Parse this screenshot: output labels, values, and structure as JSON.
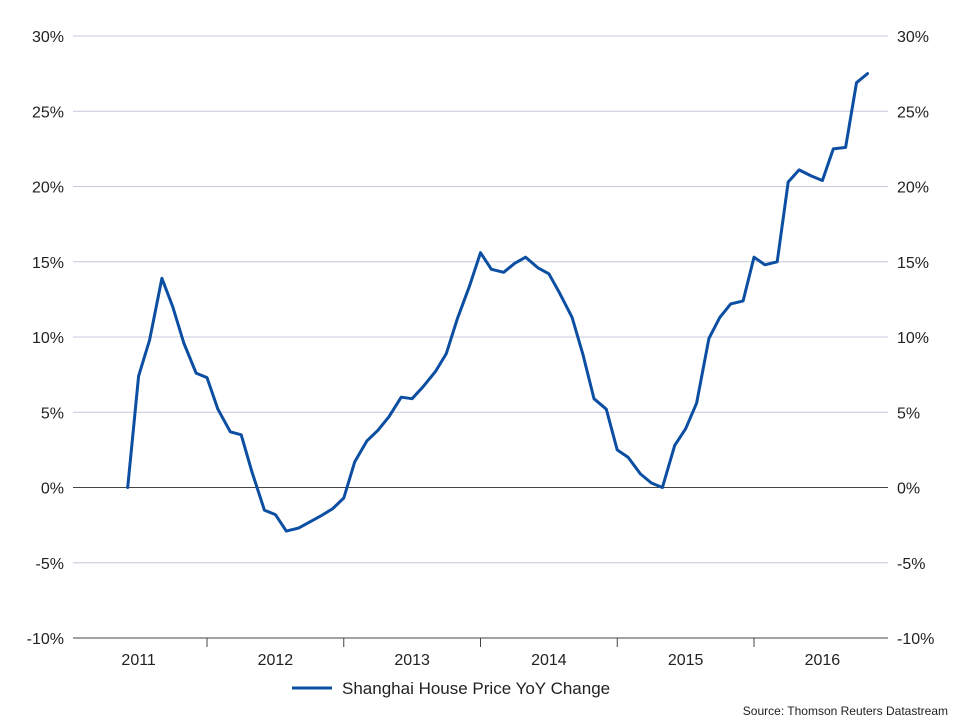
{
  "chart_data": {
    "type": "line",
    "title": "",
    "xlabel": "",
    "ylabel": "",
    "ylim": [
      -10,
      30
    ],
    "y_ticks": [
      -10,
      -5,
      0,
      5,
      10,
      15,
      20,
      25,
      30
    ],
    "y_tick_labels": [
      "-10%",
      "-5%",
      "0%",
      "5%",
      "10%",
      "15%",
      "20%",
      "25%",
      "30%"
    ],
    "y_axis_both_sides": true,
    "x_labels": [
      "2011",
      "2012",
      "2013",
      "2014",
      "2015",
      "2016"
    ],
    "grid": true,
    "legend_position": "bottom",
    "source": "Source: Thomson Reuters Datastream",
    "series": [
      {
        "name": "Shanghai House Price YoY Change",
        "color": "#0b4ea2",
        "points": [
          [
            2010.92,
            0.0
          ],
          [
            2011.0,
            7.4
          ],
          [
            2011.08,
            9.8
          ],
          [
            2011.17,
            13.9
          ],
          [
            2011.25,
            12.0
          ],
          [
            2011.33,
            9.6
          ],
          [
            2011.42,
            7.6
          ],
          [
            2011.5,
            7.3
          ],
          [
            2011.58,
            5.2
          ],
          [
            2011.67,
            3.7
          ],
          [
            2011.75,
            3.5
          ],
          [
            2011.83,
            1.0
          ],
          [
            2011.92,
            -1.5
          ],
          [
            2012.0,
            -1.8
          ],
          [
            2012.08,
            -2.9
          ],
          [
            2012.17,
            -2.7
          ],
          [
            2012.25,
            -2.3
          ],
          [
            2012.33,
            -1.9
          ],
          [
            2012.42,
            -1.4
          ],
          [
            2012.5,
            -0.7
          ],
          [
            2012.58,
            1.7
          ],
          [
            2012.67,
            3.1
          ],
          [
            2012.75,
            3.8
          ],
          [
            2012.83,
            4.7
          ],
          [
            2012.92,
            6.0
          ],
          [
            2013.0,
            5.9
          ],
          [
            2013.08,
            6.7
          ],
          [
            2013.17,
            7.7
          ],
          [
            2013.25,
            8.9
          ],
          [
            2013.33,
            11.2
          ],
          [
            2013.42,
            13.4
          ],
          [
            2013.5,
            15.6
          ],
          [
            2013.58,
            14.5
          ],
          [
            2013.67,
            14.3
          ],
          [
            2013.75,
            14.9
          ],
          [
            2013.83,
            15.3
          ],
          [
            2013.92,
            14.6
          ],
          [
            2014.0,
            14.2
          ],
          [
            2014.08,
            12.9
          ],
          [
            2014.17,
            11.3
          ],
          [
            2014.25,
            8.8
          ],
          [
            2014.33,
            5.9
          ],
          [
            2014.42,
            5.2
          ],
          [
            2014.5,
            2.5
          ],
          [
            2014.58,
            2.0
          ],
          [
            2014.67,
            0.9
          ],
          [
            2014.75,
            0.3
          ],
          [
            2014.83,
            0.0
          ],
          [
            2014.92,
            2.8
          ],
          [
            2015.0,
            3.9
          ],
          [
            2015.08,
            5.6
          ],
          [
            2015.17,
            9.9
          ],
          [
            2015.25,
            11.3
          ],
          [
            2015.33,
            12.2
          ],
          [
            2015.42,
            12.4
          ],
          [
            2015.5,
            15.3
          ],
          [
            2015.58,
            14.8
          ],
          [
            2015.67,
            15.0
          ],
          [
            2015.75,
            20.3
          ],
          [
            2015.83,
            21.1
          ],
          [
            2015.92,
            20.7
          ],
          [
            2016.0,
            20.4
          ],
          [
            2016.08,
            22.5
          ],
          [
            2016.17,
            22.6
          ],
          [
            2016.25,
            26.9
          ],
          [
            2016.33,
            27.5
          ]
        ]
      }
    ]
  }
}
